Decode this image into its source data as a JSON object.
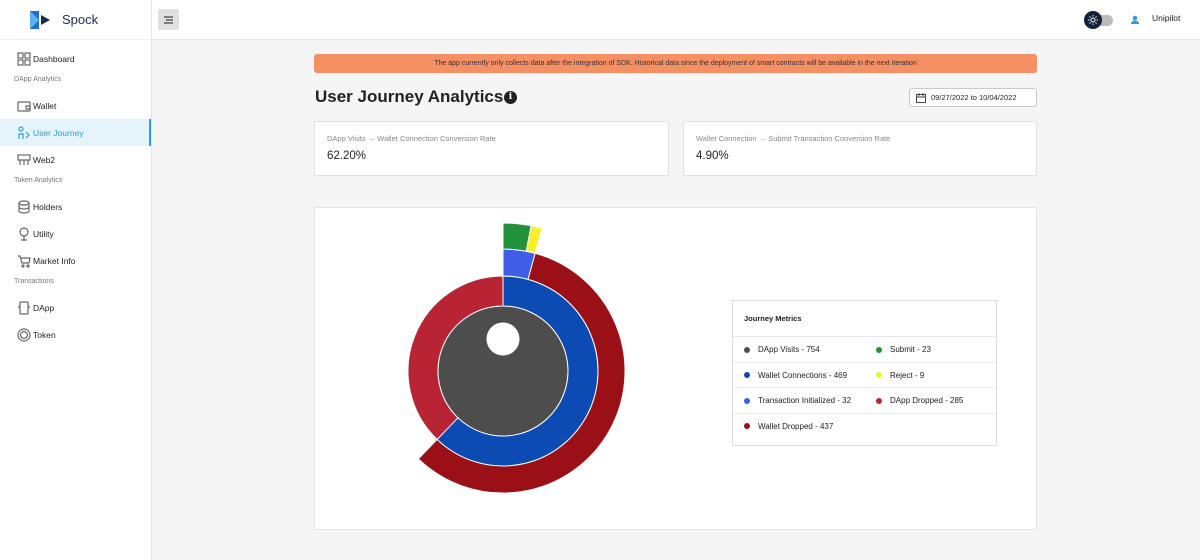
{
  "app": {
    "name": "Spock"
  },
  "sidebar": {
    "items": [
      {
        "label": "Dashboard",
        "icon": "grid-icon"
      },
      {
        "label": "Wallet",
        "icon": "wallet-icon"
      },
      {
        "label": "User Journey",
        "icon": "journey-icon"
      },
      {
        "label": "Web2",
        "icon": "web-icon"
      },
      {
        "label": "Holders",
        "icon": "database-icon"
      },
      {
        "label": "Utility",
        "icon": "tree-icon"
      },
      {
        "label": "Market Info",
        "icon": "cart-icon"
      },
      {
        "label": "DApp",
        "icon": "phone-icon"
      },
      {
        "label": "Token",
        "icon": "coin-icon"
      }
    ],
    "sections": [
      "DApp Analytics",
      "Token Analytics",
      "Transactions"
    ],
    "active_index": 2
  },
  "topbar": {
    "user_name": "Unipilot"
  },
  "banner": {
    "text": "The app currently only collects data after the integration of SDK. Historical data since the deployment of smart contracts will be available in the next iteration"
  },
  "page": {
    "title": "User Journey Analytics",
    "date_range": "09/27/2022 to 10/04/2022"
  },
  "metrics": [
    {
      "label": "DApp Visits → Wallet Connection Conversion Rate",
      "value": "62.20%"
    },
    {
      "label": "Wallet Connection → Submit Transaction Conversion Rate",
      "value": "4.90%"
    }
  ],
  "chart_data": {
    "type": "sunburst",
    "title": "Journey Metrics",
    "legend": [
      {
        "label": "DApp Visits - 754",
        "color": "#4d4d4d"
      },
      {
        "label": "Submit - 23",
        "color": "#21913a"
      },
      {
        "label": "Wallet Connections - 469",
        "color": "#0b4bb3"
      },
      {
        "label": "Reject - 9",
        "color": "#f5f02a"
      },
      {
        "label": "Transaction Initialized - 32",
        "color": "#3f5de8"
      },
      {
        "label": "DApp Dropped - 285",
        "color": "#b82433"
      },
      {
        "label": "Wallet Dropped - 437",
        "color": "#9b0f16"
      }
    ],
    "levels": [
      [
        {
          "name": "DApp Visits",
          "value": 754,
          "color": "#4d4d4d"
        }
      ],
      [
        {
          "name": "Wallet Connections",
          "value": 469,
          "color": "#0b4bb3"
        },
        {
          "name": "DApp Dropped",
          "value": 285,
          "color": "#b82433"
        }
      ],
      [
        {
          "name": "Transaction Initialized",
          "value": 32,
          "color": "#3f5de8"
        },
        {
          "name": "Wallet Dropped",
          "value": 437,
          "color": "#9b0f16"
        }
      ],
      [
        {
          "name": "Submit",
          "value": 23,
          "color": "#21913a"
        },
        {
          "name": "Reject",
          "value": 9,
          "color": "#f5f02a"
        }
      ]
    ]
  }
}
